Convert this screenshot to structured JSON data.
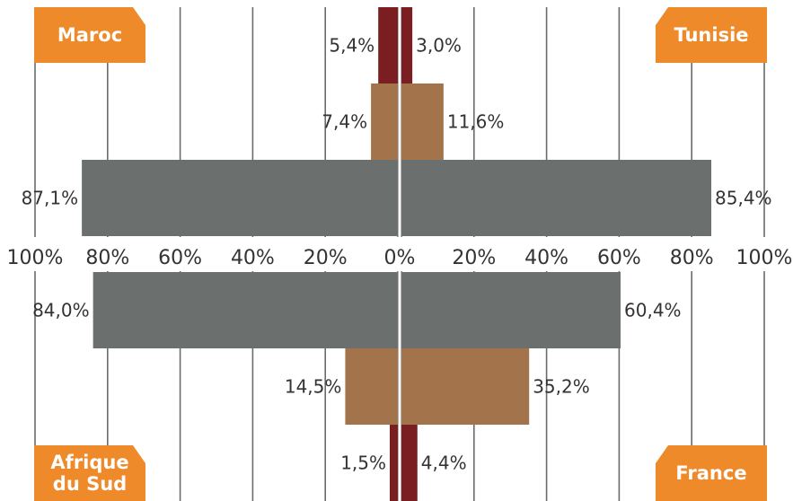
{
  "chart_data": {
    "type": "bar",
    "title": "",
    "xlabel": "",
    "ylabel": "",
    "xlim": [
      0,
      100
    ],
    "grid": true,
    "axis": {
      "ticks": [
        100,
        80,
        60,
        40,
        20,
        0,
        20,
        40,
        60,
        80,
        100
      ],
      "tick_labels": [
        "100%",
        "80%",
        "60%",
        "40%",
        "20%",
        "0%",
        "20%",
        "40%",
        "60%",
        "80%",
        "100%"
      ]
    },
    "colors": {
      "level1": "#7a1e22",
      "level2": "#a3744b",
      "level3": "#6b706e",
      "badge": "#ef8a2a",
      "grid": "#6b6b6b"
    },
    "panels": [
      {
        "country": "Maroc",
        "position": "top-left",
        "values": [
          5.4,
          7.4,
          87.1
        ],
        "labels": [
          "5,4%",
          "7,4%",
          "87,1%"
        ]
      },
      {
        "country": "Tunisie",
        "position": "top-right",
        "values": [
          3.0,
          11.6,
          85.4
        ],
        "labels": [
          "3,0%",
          "11,6%",
          "85,4%"
        ]
      },
      {
        "country": "Afrique du Sud",
        "country_lines": [
          "Afrique",
          "du Sud"
        ],
        "position": "bottom-left",
        "values": [
          84.0,
          14.5,
          1.5
        ],
        "labels": [
          "84,0%",
          "14,5%",
          "1,5%"
        ]
      },
      {
        "country": "France",
        "position": "bottom-right",
        "values": [
          60.4,
          35.2,
          4.4
        ],
        "labels": [
          "60,4%",
          "35,2%",
          "4,4%"
        ]
      }
    ]
  }
}
